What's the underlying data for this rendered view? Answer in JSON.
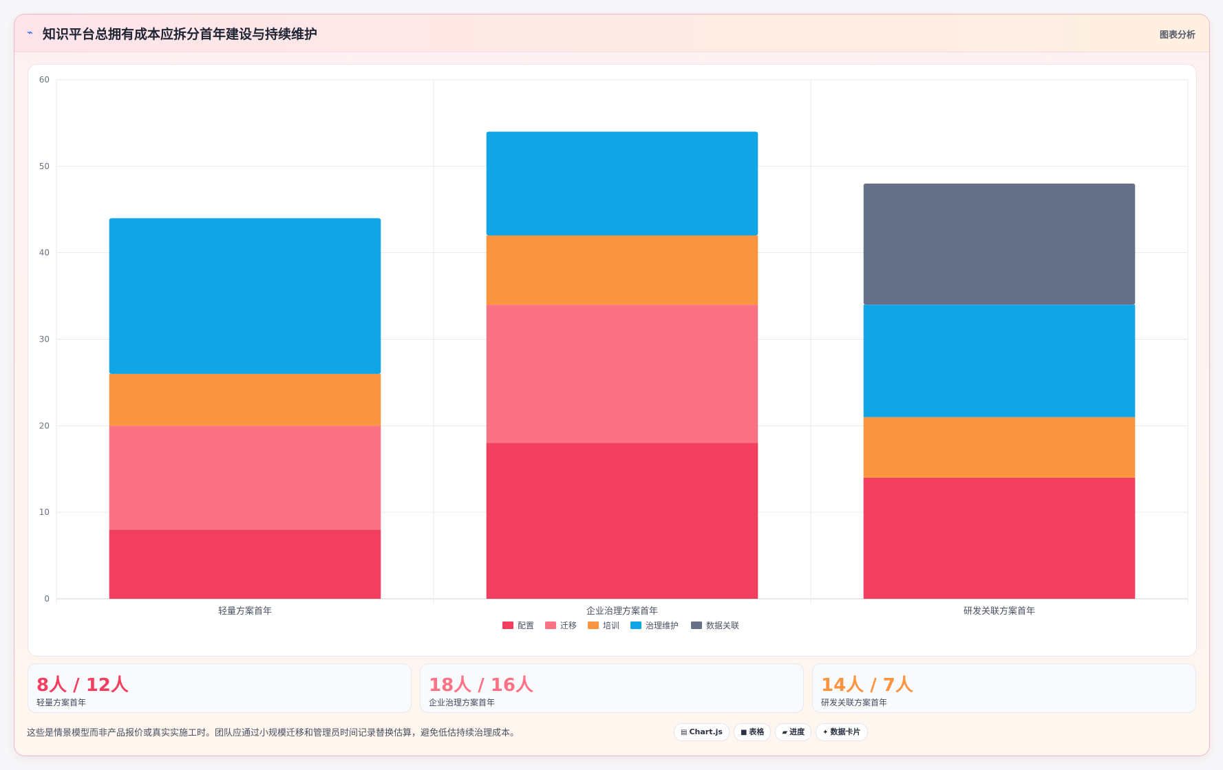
{
  "header": {
    "title": "知识平台总拥有成本应拆分首年建设与持续维护",
    "analysis_label": "图表分析"
  },
  "chart_data": {
    "type": "bar",
    "stacked": true,
    "categories": [
      "轻量方案首年",
      "企业治理方案首年",
      "研发关联方案首年"
    ],
    "series": [
      {
        "name": "配置",
        "color": "#f23f5f",
        "values": [
          8,
          18,
          14
        ]
      },
      {
        "name": "迁移",
        "color": "#fb7285",
        "values": [
          12,
          16,
          0
        ]
      },
      {
        "name": "培训",
        "color": "#fa943f",
        "values": [
          6,
          8,
          7
        ]
      },
      {
        "name": "治理维护",
        "color": "#10a5e6",
        "values": [
          18,
          12,
          13
        ]
      },
      {
        "name": "数据关联",
        "color": "#667188",
        "values": [
          0,
          0,
          14
        ]
      }
    ],
    "ylim": [
      0,
      60
    ],
    "yticks": [
      0,
      10,
      20,
      30,
      40,
      50,
      60
    ],
    "grid": true,
    "legend": "bottom"
  },
  "stats": [
    {
      "value": "8人 / 12人",
      "label": "轻量方案首年",
      "color": "#f23f5f"
    },
    {
      "value": "18人 / 16人",
      "label": "企业治理方案首年",
      "color": "#fb7285"
    },
    {
      "value": "14人 / 7人",
      "label": "研发关联方案首年",
      "color": "#fa943f"
    }
  ],
  "footer": {
    "note": "这些是情景模型而非产品报价或真实实施工时。团队应通过小规模迁移和管理员时间记录替换估算，避免低估持续治理成本。"
  },
  "chips": [
    {
      "icon": "chart-icon",
      "glyph": "▤",
      "label": "Chart.js"
    },
    {
      "icon": "table-icon",
      "glyph": "■",
      "label": "表格"
    },
    {
      "icon": "progress-icon",
      "glyph": "▰",
      "label": "进度"
    },
    {
      "icon": "data-card-icon",
      "glyph": "✦",
      "label": "数据卡片"
    }
  ]
}
